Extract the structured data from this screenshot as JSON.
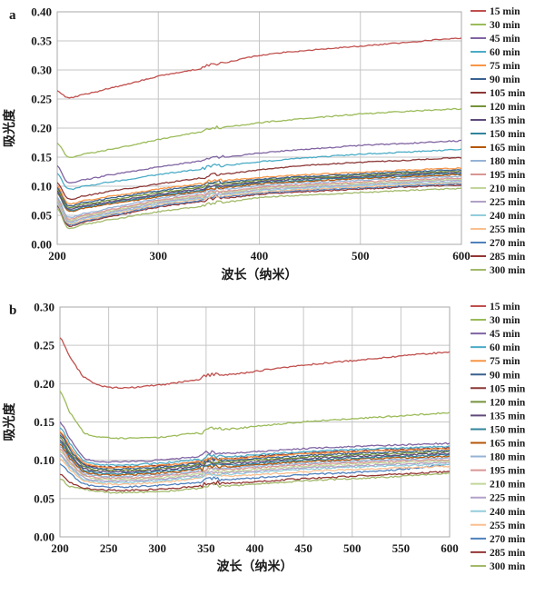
{
  "figure": {
    "panels": [
      {
        "label": "a"
      },
      {
        "label": "b"
      }
    ]
  },
  "chart_data": [
    {
      "type": "line",
      "panel_label": "a",
      "title": "",
      "xlabel": "波长（纳米）",
      "ylabel": "吸光度",
      "xlim": [
        200,
        600
      ],
      "ylim": [
        0,
        0.4
      ],
      "xticks": [
        200,
        300,
        400,
        500,
        600
      ],
      "yticks": [
        0.0,
        0.05,
        0.1,
        0.15,
        0.2,
        0.25,
        0.3,
        0.35,
        0.4
      ],
      "grid": true,
      "legend_position": "right",
      "artifact_wavelength": 350,
      "x_samples": [
        200,
        210,
        225,
        250,
        300,
        350,
        400,
        450,
        500,
        550,
        600
      ],
      "series": [
        {
          "name": "15 min",
          "color": "#C0504D",
          "values": [
            0.265,
            0.252,
            0.258,
            0.268,
            0.289,
            0.305,
            0.325,
            0.334,
            0.341,
            0.348,
            0.355
          ]
        },
        {
          "name": "30 min",
          "color": "#9BBB59",
          "values": [
            0.175,
            0.151,
            0.155,
            0.163,
            0.18,
            0.196,
            0.209,
            0.217,
            0.224,
            0.229,
            0.233
          ]
        },
        {
          "name": "45 min",
          "color": "#8064A2",
          "values": [
            0.136,
            0.107,
            0.111,
            0.119,
            0.133,
            0.145,
            0.157,
            0.164,
            0.17,
            0.174,
            0.178
          ]
        },
        {
          "name": "60 min",
          "color": "#4BACC6",
          "values": [
            0.122,
            0.096,
            0.1,
            0.107,
            0.12,
            0.131,
            0.142,
            0.149,
            0.155,
            0.159,
            0.163
          ]
        },
        {
          "name": "75 min",
          "color": "#F79646",
          "values": [
            0.101,
            0.071,
            0.075,
            0.082,
            0.095,
            0.106,
            0.115,
            0.12,
            0.124,
            0.128,
            0.131
          ]
        },
        {
          "name": "90 min",
          "color": "#39618F",
          "values": [
            0.098,
            0.068,
            0.072,
            0.079,
            0.092,
            0.103,
            0.112,
            0.117,
            0.121,
            0.125,
            0.128
          ]
        },
        {
          "name": "105 min",
          "color": "#8C3836",
          "values": [
            0.106,
            0.079,
            0.083,
            0.091,
            0.104,
            0.116,
            0.128,
            0.136,
            0.141,
            0.145,
            0.149
          ]
        },
        {
          "name": "120 min",
          "color": "#76933C",
          "values": [
            0.095,
            0.065,
            0.069,
            0.076,
            0.089,
            0.1,
            0.11,
            0.115,
            0.119,
            0.123,
            0.126
          ]
        },
        {
          "name": "135 min",
          "color": "#604A7B",
          "values": [
            0.092,
            0.062,
            0.066,
            0.073,
            0.086,
            0.097,
            0.108,
            0.113,
            0.117,
            0.121,
            0.124
          ]
        },
        {
          "name": "150 min",
          "color": "#31849B",
          "values": [
            0.09,
            0.06,
            0.064,
            0.071,
            0.084,
            0.095,
            0.106,
            0.111,
            0.115,
            0.119,
            0.122
          ]
        },
        {
          "name": "165 min",
          "color": "#B65708",
          "values": [
            0.088,
            0.058,
            0.062,
            0.069,
            0.082,
            0.093,
            0.104,
            0.109,
            0.113,
            0.117,
            0.12
          ]
        },
        {
          "name": "180 min",
          "color": "#95B3D7",
          "values": [
            0.082,
            0.048,
            0.053,
            0.062,
            0.079,
            0.09,
            0.101,
            0.106,
            0.11,
            0.114,
            0.117
          ]
        },
        {
          "name": "195 min",
          "color": "#D99694",
          "values": [
            0.079,
            0.045,
            0.05,
            0.059,
            0.076,
            0.087,
            0.098,
            0.103,
            0.107,
            0.111,
            0.114
          ]
        },
        {
          "name": "210 min",
          "color": "#C3D69B",
          "values": [
            0.077,
            0.043,
            0.048,
            0.057,
            0.074,
            0.085,
            0.096,
            0.101,
            0.105,
            0.109,
            0.112
          ]
        },
        {
          "name": "225 min",
          "color": "#B2A1C7",
          "values": [
            0.075,
            0.041,
            0.046,
            0.055,
            0.072,
            0.083,
            0.094,
            0.099,
            0.103,
            0.107,
            0.11
          ]
        },
        {
          "name": "240 min",
          "color": "#92CDDC",
          "values": [
            0.073,
            0.039,
            0.044,
            0.053,
            0.07,
            0.081,
            0.092,
            0.097,
            0.101,
            0.105,
            0.108
          ]
        },
        {
          "name": "255 min",
          "color": "#FABF8F",
          "values": [
            0.071,
            0.037,
            0.042,
            0.051,
            0.068,
            0.079,
            0.09,
            0.095,
            0.099,
            0.103,
            0.106
          ]
        },
        {
          "name": "270 min",
          "color": "#4F81BD",
          "values": [
            0.069,
            0.035,
            0.04,
            0.049,
            0.066,
            0.077,
            0.088,
            0.093,
            0.097,
            0.101,
            0.104
          ]
        },
        {
          "name": "285 min",
          "color": "#943634",
          "values": [
            0.067,
            0.033,
            0.038,
            0.047,
            0.064,
            0.075,
            0.086,
            0.091,
            0.095,
            0.099,
            0.102
          ]
        },
        {
          "name": "300 min",
          "color": "#A2B969",
          "values": [
            0.063,
            0.029,
            0.034,
            0.042,
            0.056,
            0.067,
            0.08,
            0.085,
            0.089,
            0.093,
            0.096
          ]
        }
      ]
    },
    {
      "type": "line",
      "panel_label": "b",
      "title": "",
      "xlabel": "波长（纳米）",
      "ylabel": "吸光度",
      "xlim": [
        200,
        600
      ],
      "ylim": [
        0,
        0.3
      ],
      "xticks": [
        200,
        250,
        300,
        350,
        400,
        450,
        500,
        550,
        600
      ],
      "yticks": [
        0.0,
        0.05,
        0.1,
        0.15,
        0.2,
        0.25,
        0.3
      ],
      "grid": true,
      "legend_position": "right",
      "artifact_wavelength": 350,
      "x_samples": [
        200,
        210,
        225,
        250,
        300,
        350,
        400,
        450,
        500,
        550,
        600
      ],
      "series": [
        {
          "name": "15 min",
          "color": "#C0504D",
          "values": [
            0.26,
            0.235,
            0.208,
            0.195,
            0.198,
            0.207,
            0.216,
            0.224,
            0.23,
            0.236,
            0.241
          ]
        },
        {
          "name": "30 min",
          "color": "#9BBB59",
          "values": [
            0.19,
            0.163,
            0.136,
            0.129,
            0.13,
            0.137,
            0.144,
            0.15,
            0.154,
            0.158,
            0.162
          ]
        },
        {
          "name": "45 min",
          "color": "#8064A2",
          "values": [
            0.15,
            0.128,
            0.103,
            0.098,
            0.1,
            0.106,
            0.111,
            0.115,
            0.118,
            0.12,
            0.122
          ]
        },
        {
          "name": "60 min",
          "color": "#4BACC6",
          "values": [
            0.143,
            0.122,
            0.099,
            0.094,
            0.096,
            0.102,
            0.107,
            0.111,
            0.114,
            0.116,
            0.118
          ]
        },
        {
          "name": "75 min",
          "color": "#F79646",
          "values": [
            0.138,
            0.118,
            0.096,
            0.091,
            0.093,
            0.099,
            0.104,
            0.108,
            0.111,
            0.113,
            0.115
          ]
        },
        {
          "name": "90 min",
          "color": "#39618F",
          "values": [
            0.134,
            0.114,
            0.093,
            0.089,
            0.091,
            0.097,
            0.102,
            0.106,
            0.109,
            0.111,
            0.113
          ]
        },
        {
          "name": "105 min",
          "color": "#8C3836",
          "values": [
            0.137,
            0.117,
            0.095,
            0.091,
            0.093,
            0.099,
            0.105,
            0.109,
            0.112,
            0.114,
            0.116
          ]
        },
        {
          "name": "120 min",
          "color": "#76933C",
          "values": [
            0.13,
            0.111,
            0.091,
            0.087,
            0.089,
            0.095,
            0.1,
            0.104,
            0.107,
            0.109,
            0.111
          ]
        },
        {
          "name": "135 min",
          "color": "#604A7B",
          "values": [
            0.127,
            0.108,
            0.089,
            0.085,
            0.087,
            0.093,
            0.098,
            0.102,
            0.105,
            0.107,
            0.109
          ]
        },
        {
          "name": "150 min",
          "color": "#31849B",
          "values": [
            0.124,
            0.106,
            0.087,
            0.083,
            0.085,
            0.091,
            0.096,
            0.1,
            0.103,
            0.105,
            0.107
          ]
        },
        {
          "name": "165 min",
          "color": "#B65708",
          "values": [
            0.121,
            0.103,
            0.085,
            0.081,
            0.083,
            0.089,
            0.094,
            0.098,
            0.101,
            0.103,
            0.105
          ]
        },
        {
          "name": "180 min",
          "color": "#95B3D7",
          "values": [
            0.118,
            0.101,
            0.083,
            0.079,
            0.081,
            0.087,
            0.092,
            0.096,
            0.099,
            0.101,
            0.103
          ]
        },
        {
          "name": "195 min",
          "color": "#D99694",
          "values": [
            0.115,
            0.098,
            0.081,
            0.077,
            0.079,
            0.085,
            0.09,
            0.094,
            0.097,
            0.099,
            0.101
          ]
        },
        {
          "name": "210 min",
          "color": "#C3D69B",
          "values": [
            0.112,
            0.096,
            0.079,
            0.075,
            0.077,
            0.083,
            0.088,
            0.092,
            0.095,
            0.097,
            0.099
          ]
        },
        {
          "name": "225 min",
          "color": "#B2A1C7",
          "values": [
            0.109,
            0.093,
            0.077,
            0.073,
            0.075,
            0.081,
            0.086,
            0.09,
            0.093,
            0.095,
            0.097
          ]
        },
        {
          "name": "240 min",
          "color": "#92CDDC",
          "values": [
            0.106,
            0.091,
            0.075,
            0.071,
            0.073,
            0.079,
            0.084,
            0.088,
            0.091,
            0.093,
            0.095
          ]
        },
        {
          "name": "255 min",
          "color": "#FABF8F",
          "values": [
            0.102,
            0.088,
            0.073,
            0.069,
            0.071,
            0.077,
            0.081,
            0.085,
            0.088,
            0.09,
            0.092
          ]
        },
        {
          "name": "270 min",
          "color": "#4F81BD",
          "values": [
            0.096,
            0.083,
            0.069,
            0.065,
            0.067,
            0.072,
            0.077,
            0.081,
            0.084,
            0.088,
            0.094
          ]
        },
        {
          "name": "285 min",
          "color": "#943634",
          "values": [
            0.082,
            0.071,
            0.064,
            0.061,
            0.062,
            0.067,
            0.072,
            0.076,
            0.079,
            0.082,
            0.085
          ]
        },
        {
          "name": "300 min",
          "color": "#A2B969",
          "values": [
            0.076,
            0.066,
            0.062,
            0.058,
            0.059,
            0.064,
            0.069,
            0.073,
            0.076,
            0.079,
            0.083
          ]
        }
      ]
    }
  ]
}
